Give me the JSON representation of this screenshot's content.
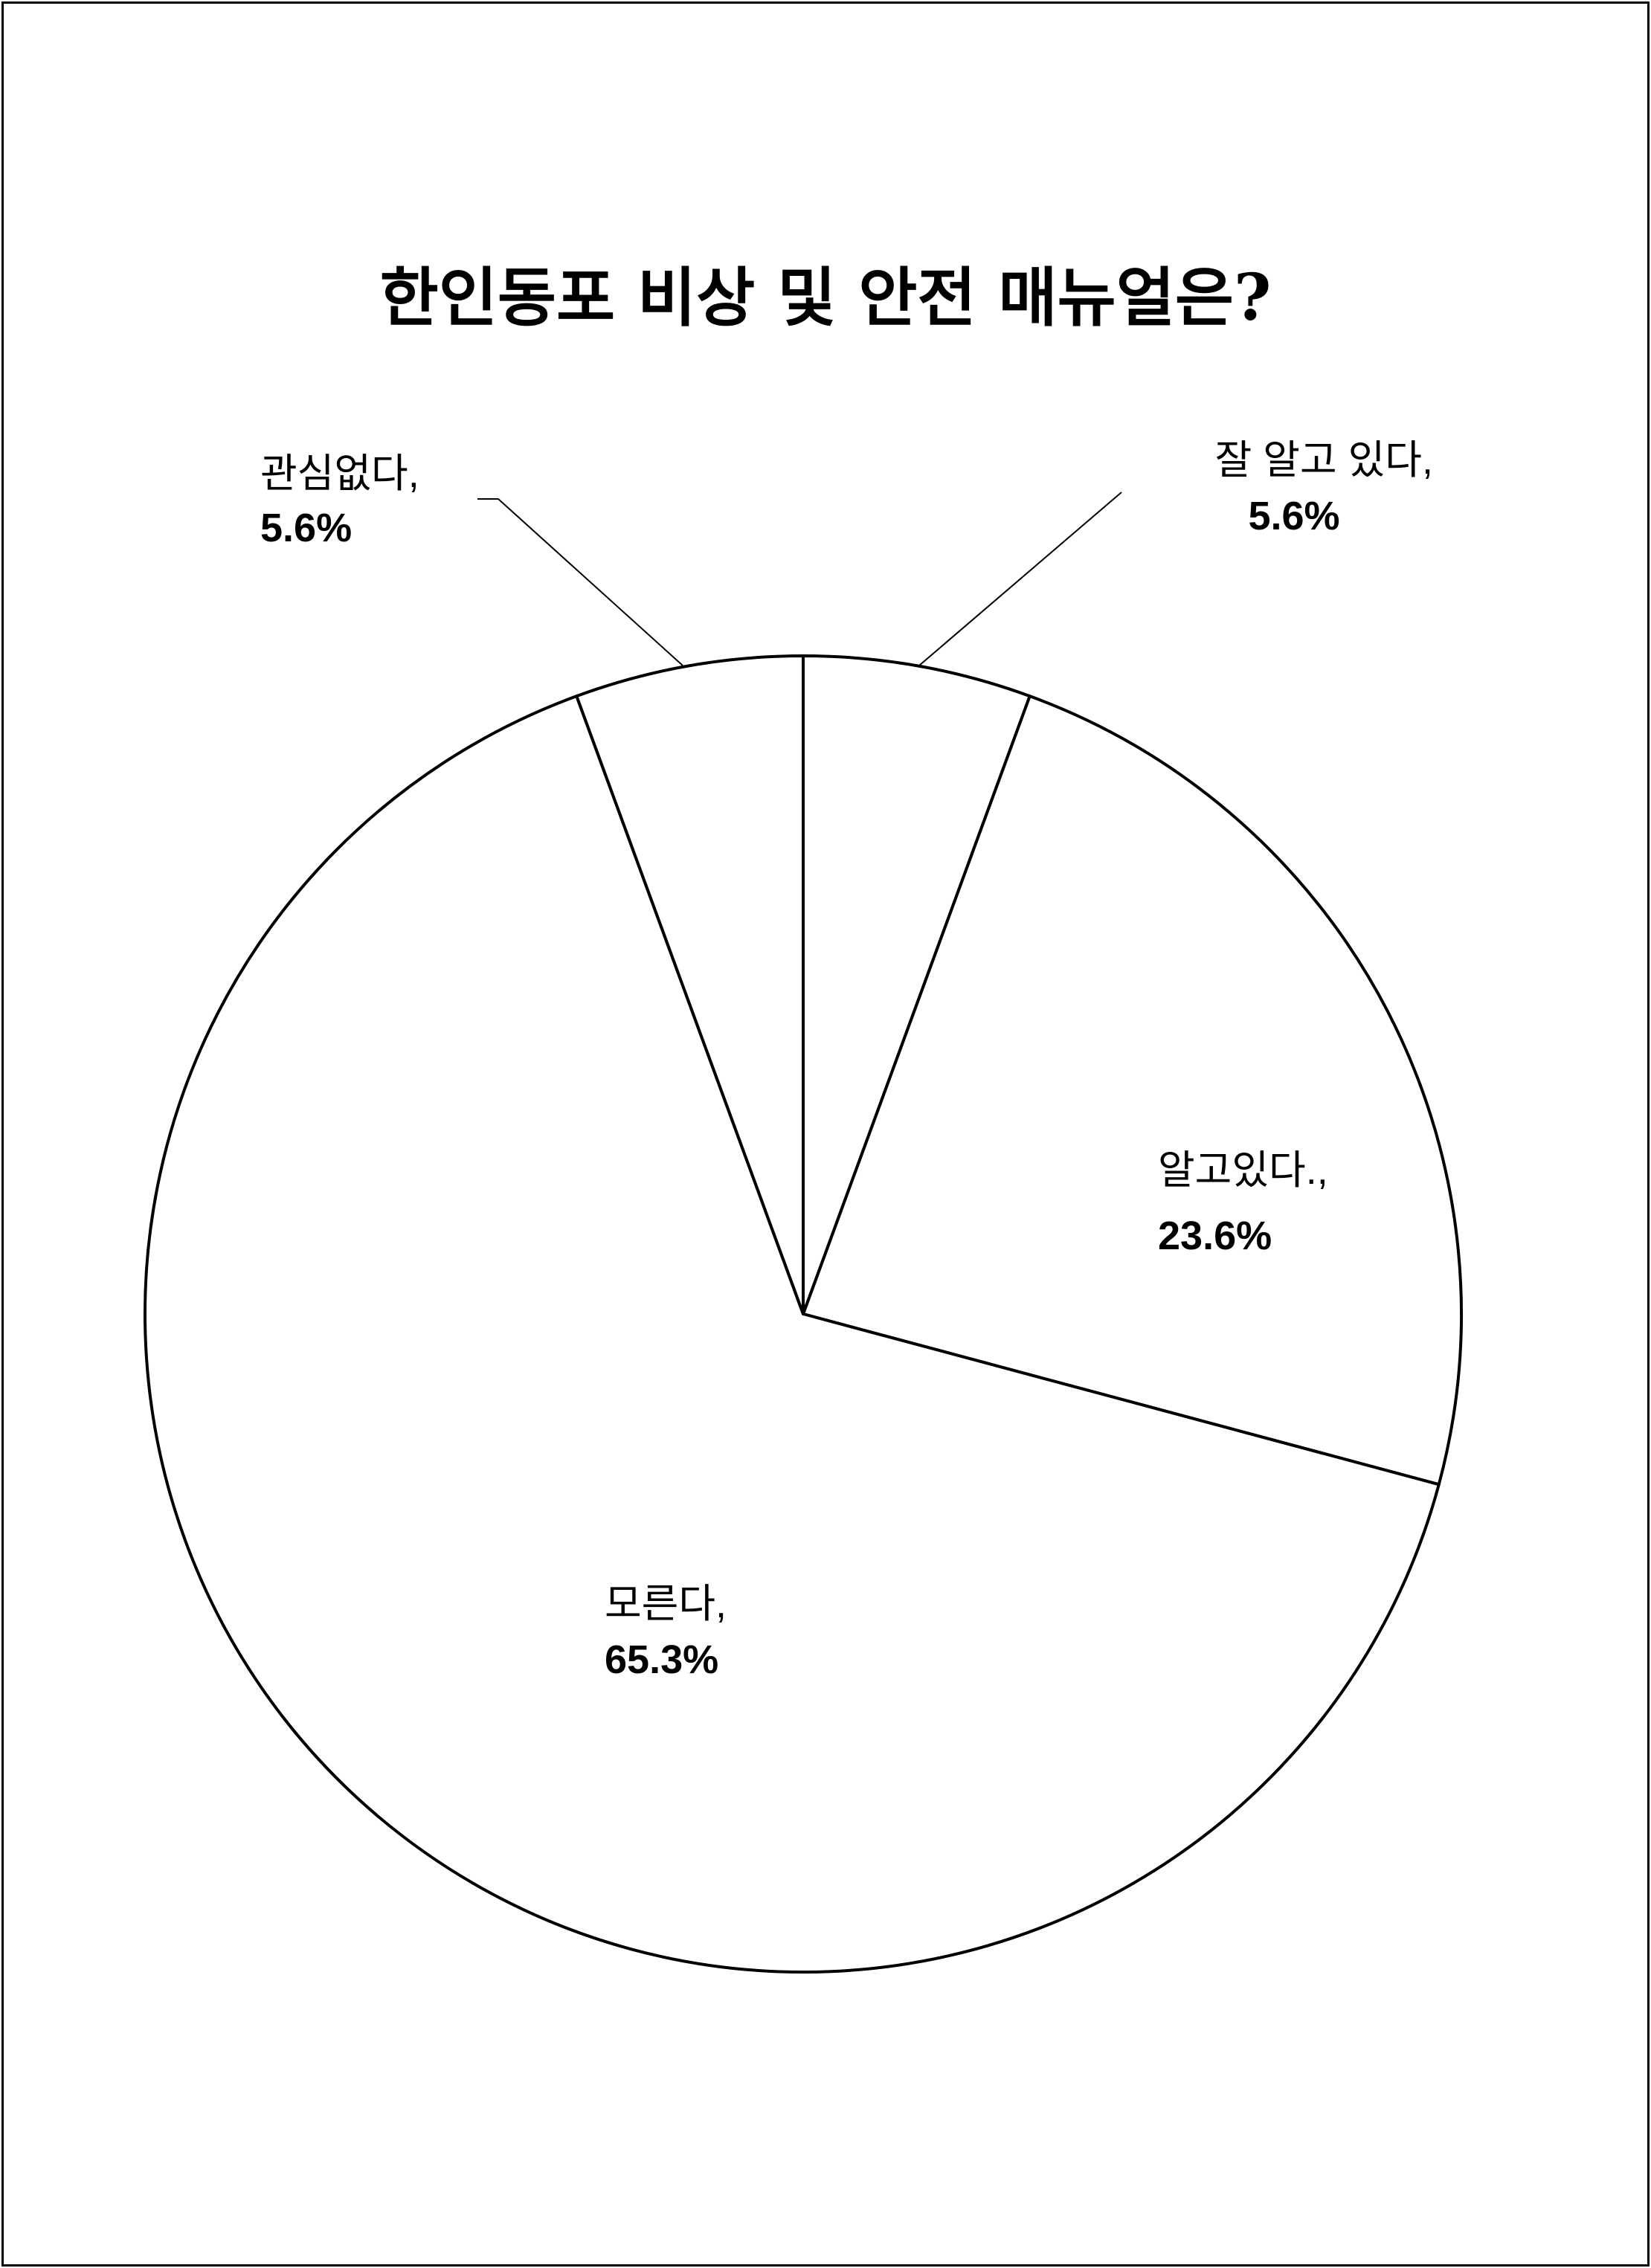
{
  "chart_data": {
    "type": "pie",
    "title": "한인동포 비상 및 안전 매뉴얼은?",
    "start_angle": "top, clockwise",
    "slices": [
      {
        "label": "잘 알고 있다,",
        "value": 5.6,
        "value_label": "5.6%",
        "color": "#ffffff"
      },
      {
        "label": "알고있다.,",
        "value": 23.6,
        "value_label": "23.6%",
        "color": "#ffffff"
      },
      {
        "label": "모른다,",
        "value": 65.3,
        "value_label": "65.3%",
        "color": "#ffffff"
      },
      {
        "label": "관심없다,",
        "value": 5.6,
        "value_label": "5.6%",
        "color": "#ffffff"
      }
    ],
    "stroke_color": "#000000",
    "legend": "none"
  }
}
